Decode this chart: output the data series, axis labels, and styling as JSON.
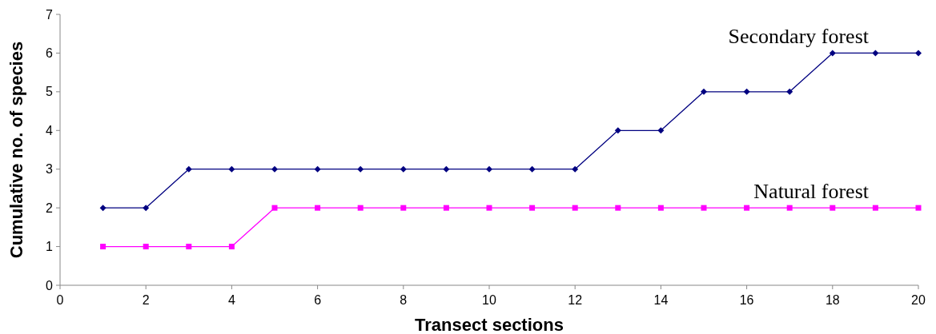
{
  "chart_data": {
    "type": "line",
    "xlabel": "Transect sections",
    "ylabel": "Cumulative no. of species",
    "x": [
      1,
      2,
      3,
      4,
      5,
      6,
      7,
      8,
      9,
      10,
      11,
      12,
      13,
      14,
      15,
      16,
      17,
      18,
      19,
      20
    ],
    "series": [
      {
        "name": "Secondary forest",
        "color": "#000080",
        "marker": "diamond",
        "values": [
          2,
          2,
          3,
          3,
          3,
          3,
          3,
          3,
          3,
          3,
          3,
          3,
          4,
          4,
          5,
          5,
          5,
          6,
          6,
          6
        ]
      },
      {
        "name": "Natural forest",
        "color": "#ff00ff",
        "marker": "square",
        "values": [
          1,
          1,
          1,
          1,
          2,
          2,
          2,
          2,
          2,
          2,
          2,
          2,
          2,
          2,
          2,
          2,
          2,
          2,
          2,
          2
        ]
      }
    ],
    "xlim": [
      0,
      20
    ],
    "xticks": [
      0,
      2,
      4,
      6,
      8,
      10,
      12,
      14,
      16,
      18,
      20
    ],
    "ylim": [
      0,
      7
    ],
    "yticks": [
      0,
      1,
      2,
      3,
      4,
      5,
      6,
      7
    ],
    "grid": false,
    "line_style": "solid"
  }
}
